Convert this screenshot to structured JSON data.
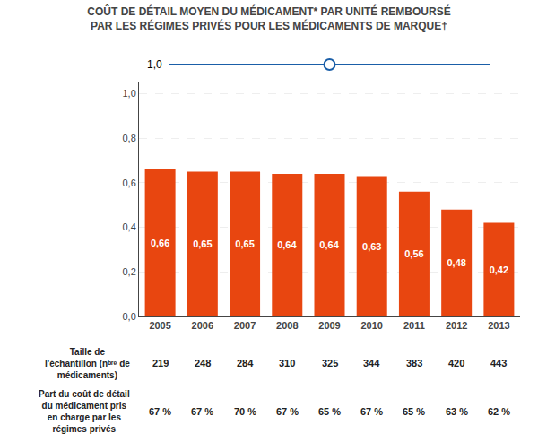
{
  "chart_data": {
    "type": "bar",
    "title": "COÛT DE DÉTAIL MOYEN DU MÉDICAMENT* PAR UNITÉ REMBOURSÉ\nPAR LES RÉGIMES PRIVÉS POUR LES MÉDICAMENTS DE MARQUE†",
    "categories": [
      "2005",
      "2006",
      "2007",
      "2008",
      "2009",
      "2010",
      "2011",
      "2012",
      "2013"
    ],
    "values": [
      0.66,
      0.65,
      0.65,
      0.64,
      0.64,
      0.63,
      0.56,
      0.48,
      0.42
    ],
    "value_labels": [
      "0,66",
      "0,65",
      "0,65",
      "0,64",
      "0,64",
      "0,63",
      "0,56",
      "0,48",
      "0,42"
    ],
    "data_labels": true,
    "color": "#E84610",
    "ylim": [
      0,
      1.05
    ],
    "yticks": [
      {
        "value": 0.0,
        "label": "0,0"
      },
      {
        "value": 0.2,
        "label": "0,2"
      },
      {
        "value": 0.4,
        "label": "0,4"
      },
      {
        "value": 0.6,
        "label": "0,6"
      },
      {
        "value": 0.8,
        "label": "0,8"
      },
      {
        "value": 1.0,
        "label": "1,0"
      }
    ],
    "grid": true,
    "annotations": [
      {
        "text": "1,0",
        "color": "#1A5EA8"
      }
    ],
    "table": [
      {
        "label": "Taille de\nl'échantillon (nᵇʳᵉ de\nmédicaments)",
        "values": [
          219,
          248,
          284,
          310,
          325,
          344,
          383,
          420,
          443
        ]
      },
      {
        "label": "Part du coût de détail\ndu médicament pris\nen charge par les\nrégimes privés",
        "values": [
          67,
          67,
          70,
          67,
          65,
          67,
          65,
          63,
          62
        ],
        "value_labels": [
          "67 %",
          "67 %",
          "70 %",
          "67 %",
          "65 %",
          "67 %",
          "65 %",
          "63 %",
          "62 %"
        ]
      }
    ]
  }
}
